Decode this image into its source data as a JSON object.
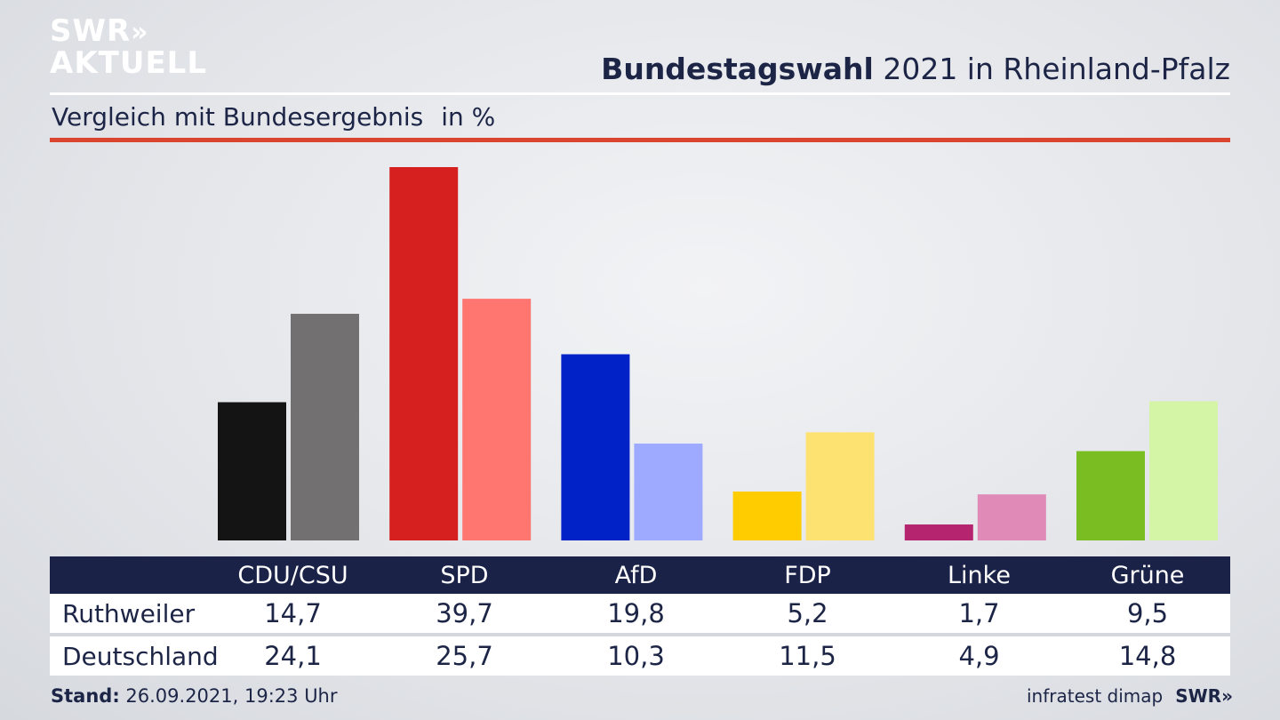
{
  "header": {
    "logo_line1": "SWR",
    "logo_arrows": "»",
    "logo_line2": "AKTUELL",
    "title_bold": "Bundestagswahl",
    "title_rest": "2021 in Rheinland-Pfalz",
    "subtitle": "Vergleich mit Bundesergebnis",
    "unit": "in %"
  },
  "footer": {
    "stand_label": "Stand:",
    "stand_value": "26.09.2021, 19:23 Uhr",
    "source": "infratest dimap",
    "brand": "SWR",
    "brand_arrows": "»"
  },
  "table": {
    "rows": [
      {
        "label": "Ruthweiler",
        "values": [
          "14,7",
          "39,7",
          "19,8",
          "5,2",
          "1,7",
          "9,5"
        ]
      },
      {
        "label": "Deutschland",
        "values": [
          "24,1",
          "25,7",
          "10,3",
          "11,5",
          "4,9",
          "14,8"
        ]
      }
    ]
  },
  "chart_data": {
    "type": "bar",
    "title": "Bundestagswahl 2021 in Rheinland-Pfalz",
    "subtitle": "Vergleich mit Bundesergebnis",
    "unit": "in %",
    "categories": [
      "CDU/CSU",
      "SPD",
      "AfD",
      "FDP",
      "Linke",
      "Grüne"
    ],
    "series": [
      {
        "name": "Ruthweiler",
        "values": [
          14.7,
          39.7,
          19.8,
          5.2,
          1.7,
          9.5
        ],
        "colors": [
          "#141414",
          "#d61f1f",
          "#0022c6",
          "#ffcc00",
          "#b5256f",
          "#79bd22"
        ]
      },
      {
        "name": "Deutschland",
        "values": [
          24.1,
          25.7,
          10.3,
          11.5,
          4.9,
          14.8
        ],
        "colors": [
          "#727070",
          "#ff7670",
          "#9eaaff",
          "#fde272",
          "#e08ab8",
          "#d4f5a6"
        ]
      }
    ],
    "ylim": [
      0,
      39.7
    ],
    "grid": false,
    "legend": "none"
  }
}
